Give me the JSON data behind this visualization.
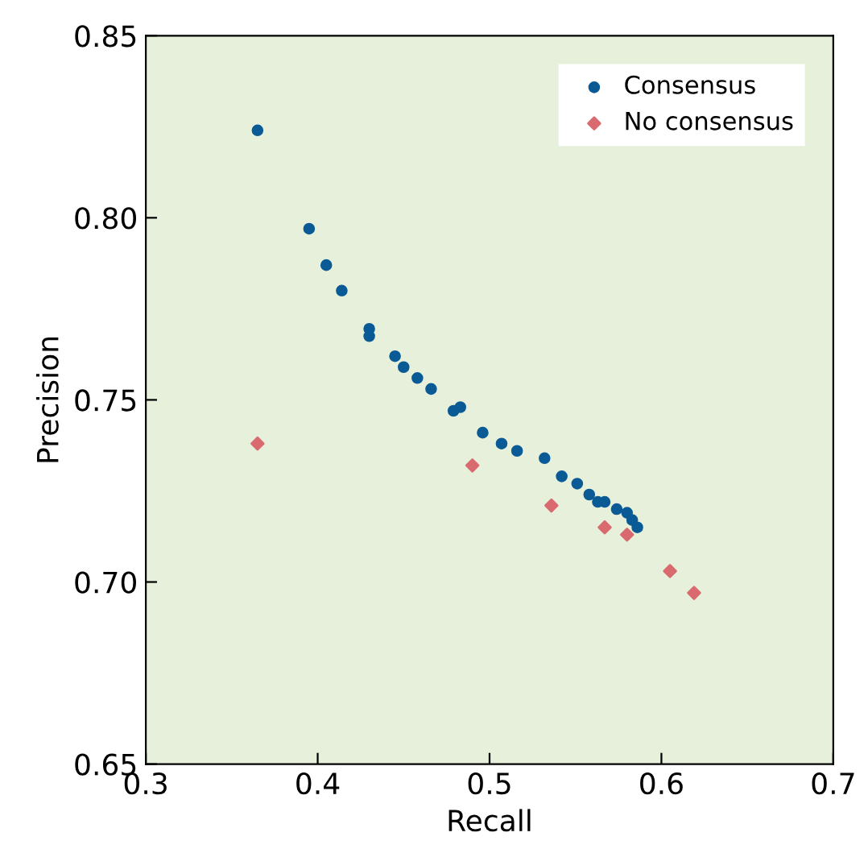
{
  "chart_data": {
    "type": "scatter",
    "xlabel": "Recall",
    "ylabel": "Precision",
    "xlim": [
      0.3,
      0.7
    ],
    "ylim": [
      0.65,
      0.85
    ],
    "xticks": [
      0.3,
      0.4,
      0.5,
      0.6,
      0.7
    ],
    "yticks": [
      {
        "value": 0.65,
        "label": "0.65"
      },
      {
        "value": 0.7,
        "label": "0.70"
      },
      {
        "value": 0.75,
        "label": "0.75"
      },
      {
        "value": 0.8,
        "label": "0.80"
      },
      {
        "value": 0.85,
        "label": "0.85"
      }
    ],
    "grid": false,
    "legend": "top right",
    "series": [
      {
        "name": "Consensus",
        "color": "#0a5a96",
        "marker": "circle",
        "x": [
          0.365,
          0.395,
          0.405,
          0.414,
          0.43,
          0.43,
          0.445,
          0.45,
          0.458,
          0.466,
          0.479,
          0.483,
          0.496,
          0.507,
          0.516,
          0.532,
          0.542,
          0.551,
          0.558,
          0.563,
          0.567,
          0.574,
          0.58,
          0.583,
          0.586
        ],
        "values": [
          0.824,
          0.797,
          0.787,
          0.78,
          0.7695,
          0.7675,
          0.762,
          0.759,
          0.756,
          0.753,
          0.747,
          0.748,
          0.741,
          0.738,
          0.736,
          0.734,
          0.729,
          0.727,
          0.724,
          0.722,
          0.722,
          0.72,
          0.719,
          0.717,
          0.715
        ]
      },
      {
        "name": "No consensus",
        "color": "#d96a6f",
        "marker": "diamond",
        "x": [
          0.365,
          0.49,
          0.536,
          0.567,
          0.58,
          0.605,
          0.619
        ],
        "values": [
          0.738,
          0.732,
          0.721,
          0.715,
          0.713,
          0.703,
          0.697
        ]
      }
    ]
  }
}
